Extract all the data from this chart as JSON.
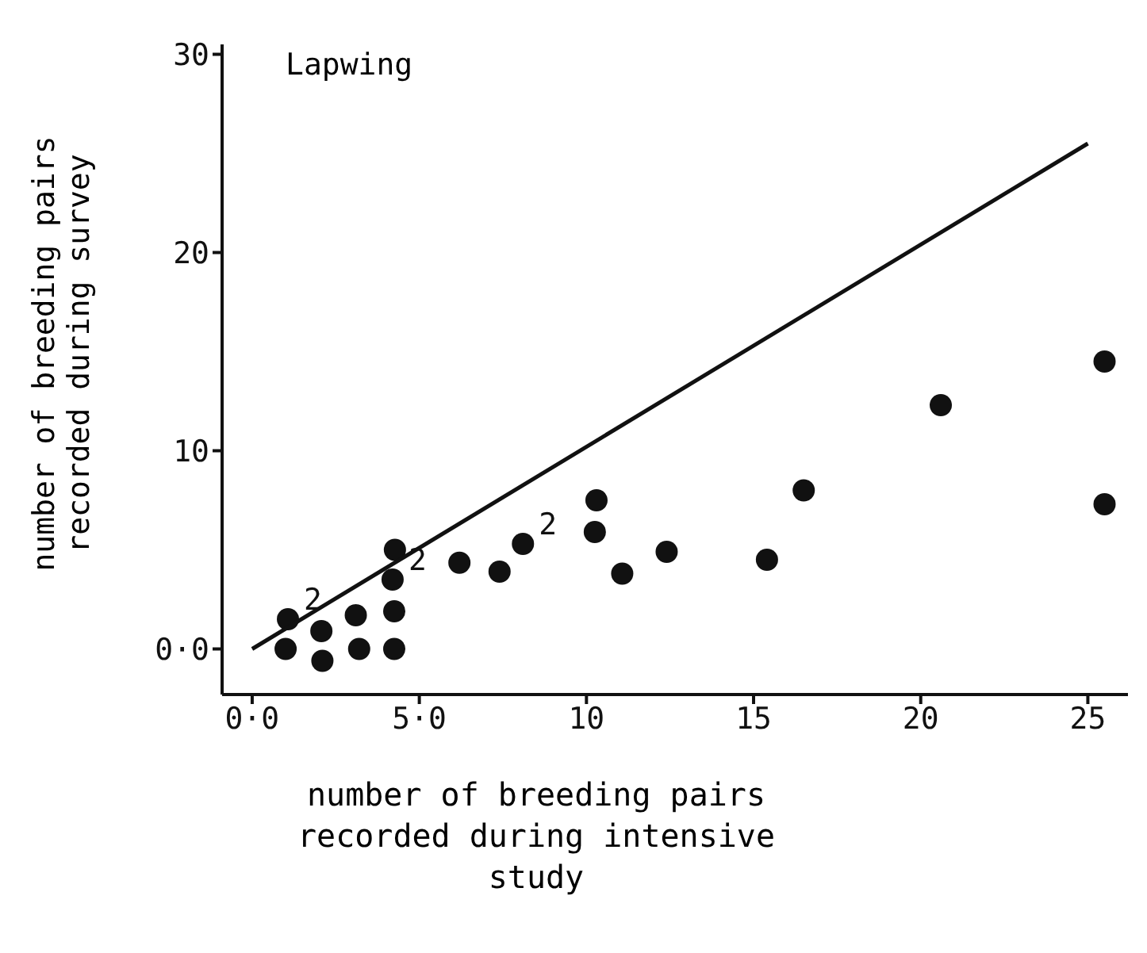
{
  "chart_data": {
    "type": "scatter",
    "title": "Lapwing",
    "xlabel": "number of breeding pairs recorded during intensive study",
    "ylabel": "number of breeding pairs recorded during survey",
    "xlim": [
      -0.9,
      26.2
    ],
    "ylim": [
      -2.3,
      30.5
    ],
    "xticks": [
      {
        "value": 0,
        "label": "0·0"
      },
      {
        "value": 5,
        "label": "5·0"
      },
      10,
      15,
      20,
      25
    ],
    "yticks": [
      {
        "value": 0,
        "label": "0·0"
      },
      10,
      20,
      30
    ],
    "marker": "circle",
    "series": [
      {
        "color": "#111111",
        "x": [
          1.07,
          1.0,
          2.07,
          2.1,
          3.1,
          3.2,
          4.27,
          4.2,
          4.25,
          4.25,
          6.2,
          7.4,
          8.1,
          10.3,
          10.25,
          11.07,
          12.4,
          15.4,
          16.5,
          20.6,
          25.5,
          25.5
        ],
        "values": [
          1.5,
          0,
          0.9,
          -0.6,
          1.7,
          0,
          5.0,
          3.5,
          1.9,
          0,
          4.35,
          3.9,
          5.3,
          7.5,
          5.9,
          3.8,
          4.9,
          4.5,
          8.0,
          12.3,
          14.5,
          7.3
        ]
      },
      {
        "type": "line",
        "color": "#111111",
        "marker": "none",
        "x": [
          0,
          25
        ],
        "values": [
          0,
          25.5
        ]
      }
    ],
    "annotations": [
      {
        "text": "2",
        "x": 1.07,
        "y": 1.5
      },
      {
        "text": "2",
        "x": 4.2,
        "y": 3.5
      },
      {
        "text": "2",
        "x": 8.1,
        "y": 5.3
      }
    ]
  }
}
